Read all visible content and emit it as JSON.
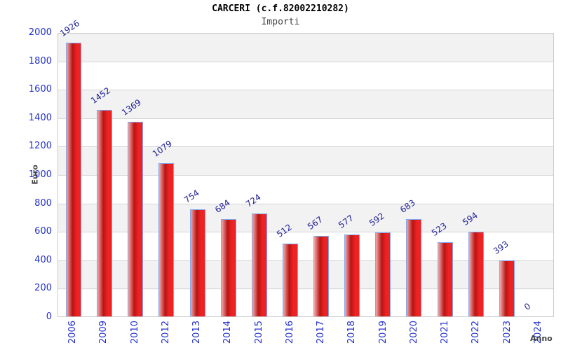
{
  "chart_data": {
    "type": "bar",
    "title": "CARCERI (c.f.82002210282)",
    "subtitle": "Importi",
    "xlabel": "Anno",
    "ylabel": "Euro",
    "categories": [
      "2006",
      "2009",
      "2010",
      "2012",
      "2013",
      "2014",
      "2015",
      "2016",
      "2017",
      "2018",
      "2019",
      "2020",
      "2021",
      "2022",
      "2023",
      "2024"
    ],
    "values": [
      1926,
      1452,
      1369,
      1079,
      754,
      684,
      724,
      512,
      567,
      577,
      592,
      683,
      523,
      594,
      393,
      0
    ],
    "ylim": [
      0,
      2000
    ],
    "y_ticks": [
      0,
      200,
      400,
      600,
      800,
      1000,
      1200,
      1400,
      1600,
      1800,
      2000
    ],
    "grid": true,
    "legend_position": "none",
    "colors": {
      "bar_fill_edge": "#f2aaaa",
      "bar_fill_dark": "#b81414",
      "bar_fill_main": "#ee2222",
      "bar_border": "#7fa8ef",
      "axis_tick_label": "#2230cc",
      "value_label": "#222299",
      "band_gray": "#f2f2f2",
      "band_white": "#ffffff",
      "gridline": "#d6d6d6",
      "axis_title": "#444444",
      "title": "#000000",
      "subtitle": "#444444"
    }
  }
}
